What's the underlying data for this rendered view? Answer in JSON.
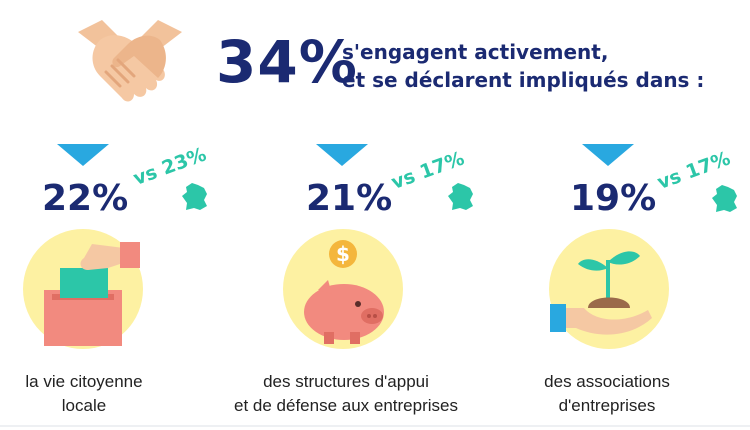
{
  "header": {
    "percent": "34%",
    "line1": "s'engagent activement,",
    "line2": "et se déclarent impliqués dans :"
  },
  "columns": [
    {
      "percent": "22%",
      "vs": "vs 23%",
      "label": "la vie citoyenne\nlocale"
    },
    {
      "percent": "21%",
      "vs": "vs 17%",
      "label": "des structures d'appui\net de défense aux entreprises"
    },
    {
      "percent": "19%",
      "vs": "vs 17%",
      "label": "des associations\nd'entreprises"
    }
  ],
  "colors": {
    "navy": "#1b2a72",
    "accent_blue": "#29a8e0",
    "teal": "#2cc6a8",
    "circle_yellow": "#fdf1a2",
    "salmon": "#f28a7f"
  }
}
